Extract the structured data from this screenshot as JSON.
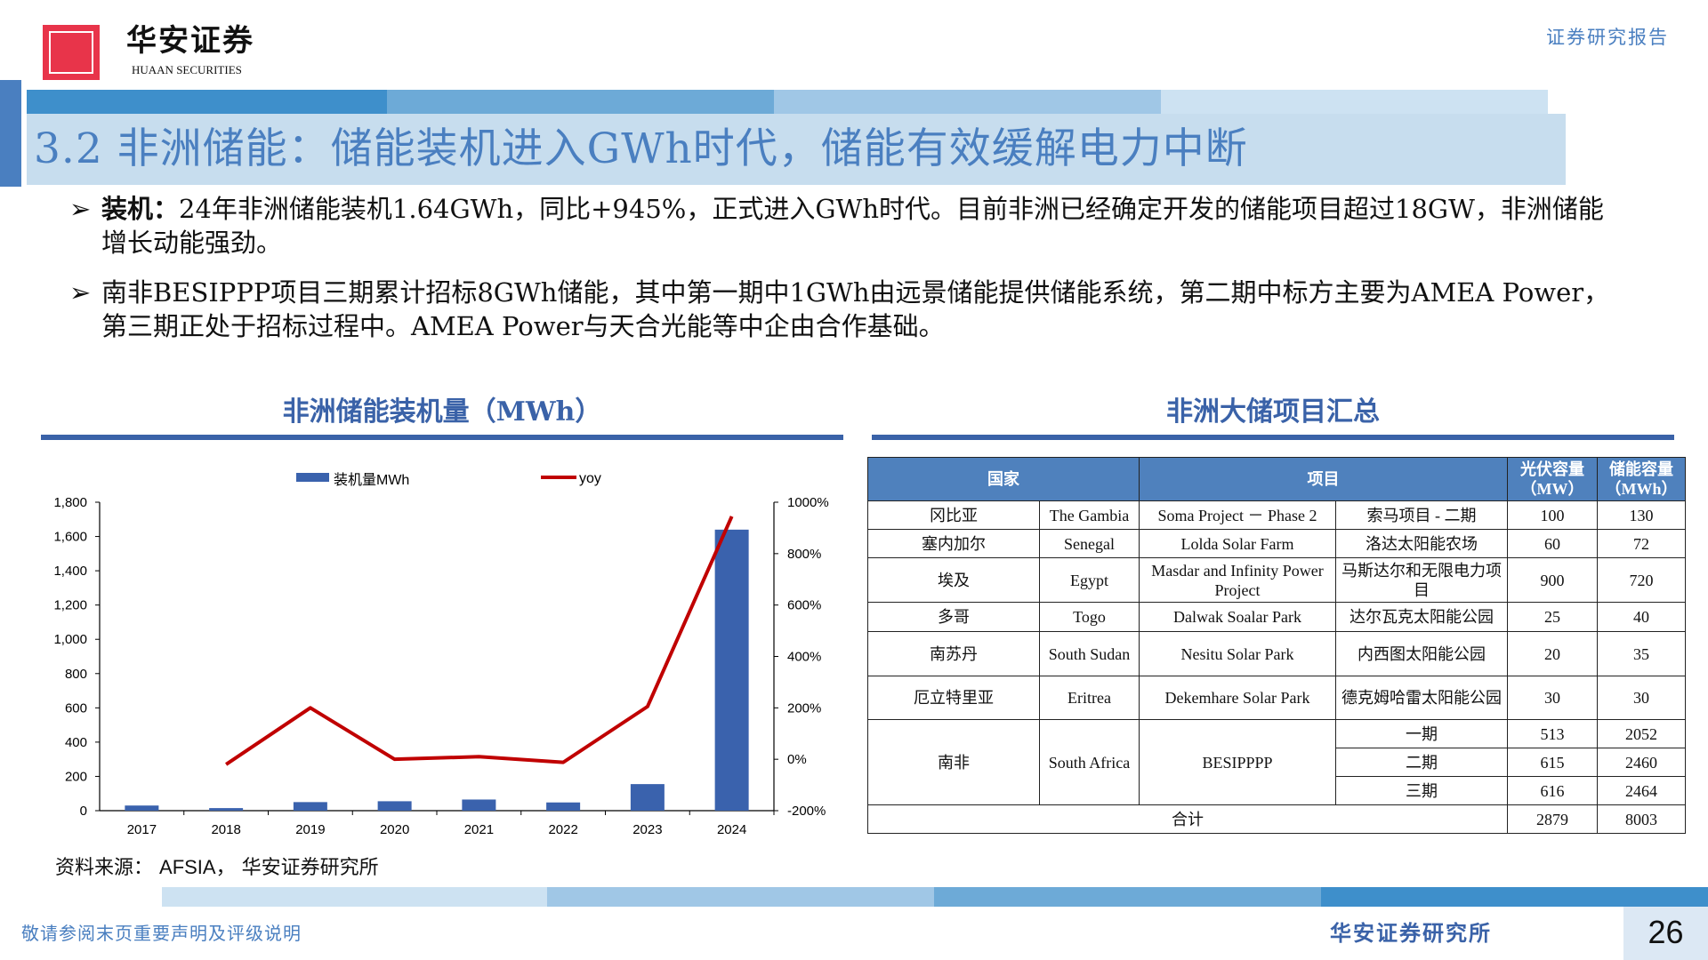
{
  "header": {
    "brand_cn": "华安证券",
    "brand_en": "HUAAN SECURITIES",
    "report_type": "证券研究报告",
    "title": "3.2 非洲储能：储能装机进入GWh时代，储能有效缓解电力中断",
    "colors": {
      "accent": "#4a7fc0",
      "strip1": "#3e8fcb",
      "strip2": "#6daad7",
      "strip3": "#a0c7e6",
      "strip4": "#cde2f2",
      "logo": "#e8344a"
    }
  },
  "bullets": [
    {
      "icon": "arrow-right-icon",
      "bold": "装机：",
      "text": "24年非洲储能装机1.64GWh，同比+945%，正式进入GWh时代。目前非洲已经确定开发的储能项目超过18GW，非洲储能增长动能强劲。"
    },
    {
      "icon": "arrow-right-icon",
      "bold": "",
      "text": "南非BESIPPP项目三期累计招标8GWh储能，其中第一期中1GWh由远景储能提供储能系统，第二期中标方主要为AMEA Power，第三期正处于招标过程中。AMEA Power与天合光能等中企由合作基础。"
    }
  ],
  "chart_section": {
    "title": "非洲储能装机量（MWh）"
  },
  "table_section": {
    "title": "非洲大储项目汇总"
  },
  "chart_data": {
    "type": "bar+line",
    "categories": [
      "2017",
      "2018",
      "2019",
      "2020",
      "2021",
      "2022",
      "2023",
      "2024"
    ],
    "series": [
      {
        "name": "装机量MWh",
        "type": "bar",
        "axis": "left",
        "color": "#3a62ad",
        "values": [
          30,
          15,
          50,
          55,
          65,
          48,
          155,
          1640
        ]
      },
      {
        "name": "yoy",
        "type": "line",
        "axis": "right",
        "color": "#c00000",
        "values": [
          null,
          -20,
          200,
          0,
          10,
          -12,
          205,
          945
        ]
      }
    ],
    "left_axis": {
      "ylim": [
        0,
        1800
      ],
      "ticks": [
        "0",
        "200",
        "400",
        "600",
        "800",
        "1,000",
        "1,200",
        "1,400",
        "1,600",
        "1,800"
      ]
    },
    "right_axis": {
      "ylim": [
        -200,
        1000
      ],
      "ticks": [
        "-200%",
        "0%",
        "200%",
        "400%",
        "600%",
        "800%",
        "1000%"
      ]
    },
    "legend": "top",
    "grid": false
  },
  "table": {
    "headers": {
      "country": "国家",
      "project": "项目",
      "pv": "光伏容量（MW）",
      "storage": "储能容量（MWh）"
    },
    "rows": [
      {
        "cn": "冈比亚",
        "en": "The Gambia",
        "project_en": "Soma Project － Phase 2",
        "project_cn": "索马项目 - 二期",
        "pv": "100",
        "storage": "130"
      },
      {
        "cn": "塞内加尔",
        "en": "Senegal",
        "project_en": "Lolda Solar Farm",
        "project_cn": "洛达太阳能农场",
        "pv": "60",
        "storage": "72"
      },
      {
        "cn": "埃及",
        "en": "Egypt",
        "project_en": "Masdar and Infinity Power Project",
        "project_cn": "马斯达尔和无限电力项目",
        "pv": "900",
        "storage": "720"
      },
      {
        "cn": "多哥",
        "en": "Togo",
        "project_en": "Dalwak Soalar Park",
        "project_cn": "达尔瓦克太阳能公园",
        "pv": "25",
        "storage": "40"
      },
      {
        "cn": "南苏丹",
        "en": "South Sudan",
        "project_en": "Nesitu Solar Park",
        "project_cn": "内西图太阳能公园",
        "pv": "20",
        "storage": "35"
      },
      {
        "cn": "厄立特里亚",
        "en": "Eritrea",
        "project_en": "Dekemhare Solar Park",
        "project_cn": "德克姆哈雷太阳能公园",
        "pv": "30",
        "storage": "30"
      }
    ],
    "south_africa": {
      "cn": "南非",
      "en": "South Africa",
      "project_en": "BESIPPPP",
      "phases": [
        {
          "name": "一期",
          "pv": "513",
          "storage": "2052"
        },
        {
          "name": "二期",
          "pv": "615",
          "storage": "2460"
        },
        {
          "name": "三期",
          "pv": "616",
          "storage": "2464"
        }
      ]
    },
    "total": {
      "label": "合计",
      "pv": "2879",
      "storage": "8003"
    }
  },
  "source": {
    "label": "资料来源：",
    "en": "AFSIA",
    "rest": "， 华安证券研究所"
  },
  "footer": {
    "disclaimer": "敬请参阅末页重要声明及评级说明",
    "institute": "华安证券研究所",
    "page": "26"
  }
}
